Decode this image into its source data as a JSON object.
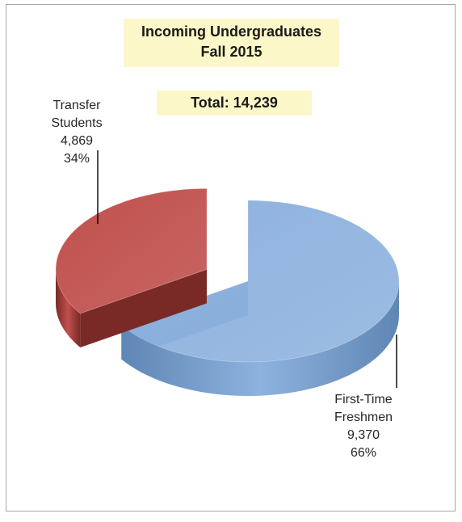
{
  "chart_data": {
    "type": "pie",
    "title": "Incoming Undergraduates",
    "subtitle": "Fall 2015",
    "total_label": "Total: 14,239",
    "slices": [
      {
        "name_line1": "First-Time",
        "name_line2": "Freshmen",
        "value": 9370,
        "value_label": "9,370",
        "percent": 66,
        "percent_label": "66%",
        "color": "#8eb2de",
        "side_color": "#5f86b4"
      },
      {
        "name_line1": "Transfer",
        "name_line2": "Students",
        "value": 4869,
        "value_label": "4,869",
        "percent": 34,
        "percent_label": "34%",
        "color": "#c0504d",
        "side_color": "#7a2a26",
        "exploded": true
      }
    ],
    "style": "3d-exploded"
  }
}
